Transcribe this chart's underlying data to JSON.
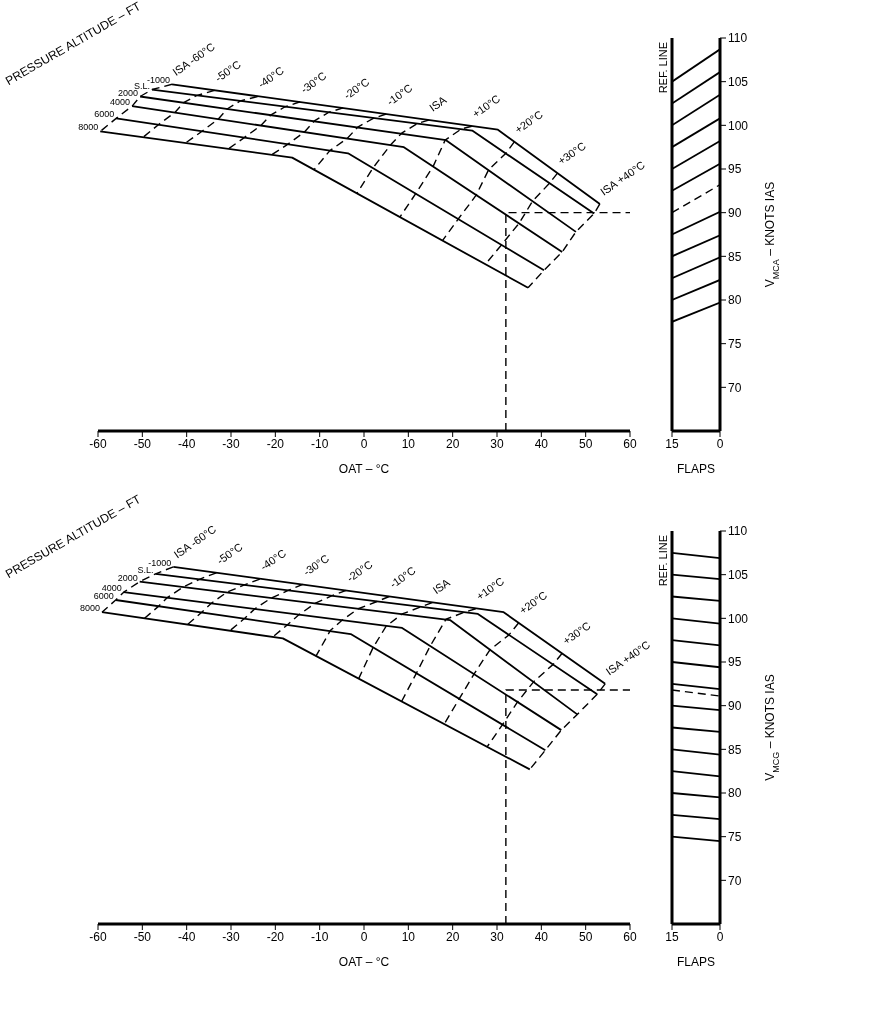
{
  "chart_data": [
    {
      "type": "line",
      "xlabel": "OAT – °C",
      "legend_title": "PRESSURE ALTITUDE – FT",
      "xlim": [
        -60,
        60
      ],
      "xticks": [
        -60,
        -50,
        -40,
        -30,
        -20,
        -10,
        0,
        10,
        20,
        30,
        40,
        50,
        60
      ],
      "ylim": [
        65,
        110
      ],
      "tick_labels": "x",
      "series": [
        {
          "name": "-1000",
          "color": "#000000",
          "line_style": "solid",
          "x": [
            -43.3,
            30.2,
            53.2
          ],
          "values": [
            104.7,
            99.5,
            91.0
          ]
        },
        {
          "name": "S.L.",
          "color": "#000000",
          "line_style": "solid",
          "x": [
            -47.8,
            24.4,
            51.9
          ],
          "values": [
            104.1,
            99.4,
            89.9
          ]
        },
        {
          "name": "2000",
          "color": "#000000",
          "line_style": "solid",
          "x": [
            -50.5,
            18.5,
            47.8
          ],
          "values": [
            103.3,
            98.3,
            87.8
          ]
        },
        {
          "name": "4000",
          "color": "#000000",
          "line_style": "solid",
          "x": [
            -52.3,
            9.0,
            44.7
          ],
          "values": [
            102.2,
            97.5,
            85.5
          ]
        },
        {
          "name": "6000",
          "color": "#000000",
          "line_style": "solid",
          "x": [
            -55.9,
            -3.6,
            40.6
          ],
          "values": [
            100.8,
            96.8,
            83.4
          ]
        },
        {
          "name": "8000",
          "color": "#000000",
          "line_style": "solid",
          "x": [
            -59.5,
            -16.2,
            37.0
          ],
          "values": [
            99.3,
            96.3,
            81.4
          ]
        },
        {
          "name": "ISA -60°C",
          "color": "#000000",
          "line_style": "dashed",
          "x": [
            -43.3,
            -47.8,
            -50.5,
            -52.3,
            -55.9,
            -59.5
          ],
          "values": [
            104.7,
            104.1,
            103.3,
            102.2,
            100.8,
            99.3
          ]
        },
        {
          "name": "-50°C",
          "color": "#000000",
          "line_style": "dashed",
          "x": [
            -33.7,
            -37.8,
            -40.7,
            -42.6,
            -46.3,
            -49.9
          ],
          "values": [
            104.0,
            103.4,
            102.6,
            101.5,
            100.1,
            98.6
          ]
        },
        {
          "name": "-40°C",
          "color": "#000000",
          "line_style": "dashed",
          "x": [
            -24.0,
            -27.9,
            -30.8,
            -32.9,
            -36.6,
            -40.2
          ],
          "values": [
            103.3,
            102.8,
            101.9,
            100.7,
            99.3,
            98.0
          ]
        },
        {
          "name": "-30°C",
          "color": "#000000",
          "line_style": "dashed",
          "x": [
            -14.4,
            -17.9,
            -21.0,
            -23.2,
            -27.0,
            -30.6
          ],
          "values": [
            102.7,
            102.1,
            101.2,
            100.0,
            98.6,
            97.3
          ]
        },
        {
          "name": "-20°C",
          "color": "#000000",
          "line_style": "dashed",
          "x": [
            -4.7,
            -7.9,
            -11.2,
            -13.5,
            -17.3,
            -20.9
          ],
          "values": [
            102.0,
            101.5,
            100.5,
            99.2,
            97.8,
            96.6
          ]
        },
        {
          "name": "-10°C",
          "color": "#000000",
          "line_style": "dashed",
          "x": [
            5.0,
            2.1,
            -1.4,
            -3.8,
            -7.7,
            -11.3
          ],
          "values": [
            101.3,
            100.8,
            99.8,
            98.5,
            97.1,
            94.9
          ]
        },
        {
          "name": "ISA",
          "color": "#000000",
          "line_style": "dashed",
          "x": [
            14.6,
            12.0,
            8.5,
            5.9,
            2.0,
            -1.6
          ],
          "values": [
            100.6,
            100.2,
            99.1,
            97.7,
            95.1,
            92.2
          ]
        },
        {
          "name": "+10°C",
          "color": "#000000",
          "line_style": "dashed",
          "x": [
            24.3,
            22.0,
            18.3,
            15.6,
            11.7,
            8.1
          ],
          "values": [
            99.9,
            99.6,
            98.3,
            95.3,
            92.2,
            89.5
          ]
        },
        {
          "name": "+20°C",
          "color": "#000000",
          "line_style": "dashed",
          "x": [
            33.9,
            32.0,
            28.1,
            25.3,
            21.3,
            17.7
          ],
          "values": [
            98.1,
            96.8,
            94.9,
            92.0,
            89.3,
            86.8
          ]
        },
        {
          "name": "+30°C",
          "color": "#000000",
          "line_style": "dashed",
          "x": [
            43.6,
            41.9,
            38.0,
            35.0,
            31.0,
            27.4
          ],
          "values": [
            94.5,
            93.4,
            91.3,
            88.8,
            86.3,
            84.1
          ]
        },
        {
          "name": "ISA +40°C",
          "color": "#000000",
          "line_style": "dashed",
          "x": [
            53.2,
            51.9,
            47.8,
            44.7,
            40.6,
            37.0
          ],
          "values": [
            91.0,
            89.9,
            87.8,
            85.5,
            83.4,
            81.4
          ]
        },
        {
          "color": "#000000",
          "line_style": "dashed",
          "x": [
            32,
            32,
            60
          ],
          "values": [
            65,
            90,
            90
          ]
        }
      ]
    },
    {
      "type": "line",
      "xlabel": "FLAPS",
      "ylabel": "V$_{MCA}$ – KNOTS IAS",
      "xlim": [
        15,
        0
      ],
      "xticks": [
        15,
        0
      ],
      "ylim": [
        65,
        110
      ],
      "yticks": [
        70,
        75,
        80,
        85,
        90,
        95,
        100,
        105,
        110
      ],
      "ref_lines": [
        {
          "axis": "x",
          "value": 15,
          "label": "REF. LINE"
        }
      ],
      "series": [
        {
          "color": "#000000",
          "line_style": "solid",
          "x": [
            15,
            0
          ],
          "values": [
            105.0,
            108.7
          ]
        },
        {
          "color": "#000000",
          "line_style": "solid",
          "x": [
            15,
            0
          ],
          "values": [
            102.5,
            106.1
          ]
        },
        {
          "color": "#000000",
          "line_style": "solid",
          "x": [
            15,
            0
          ],
          "values": [
            100.0,
            103.5
          ]
        },
        {
          "color": "#000000",
          "line_style": "solid",
          "x": [
            15,
            0
          ],
          "values": [
            97.5,
            100.8
          ]
        },
        {
          "color": "#000000",
          "line_style": "solid",
          "x": [
            15,
            0
          ],
          "values": [
            95.0,
            98.2
          ]
        },
        {
          "color": "#000000",
          "line_style": "solid",
          "x": [
            15,
            0
          ],
          "values": [
            92.5,
            95.6
          ]
        },
        {
          "color": "#000000",
          "line_style": "solid",
          "x": [
            15,
            0
          ],
          "values": [
            87.5,
            90.1
          ]
        },
        {
          "color": "#000000",
          "line_style": "solid",
          "x": [
            15,
            0
          ],
          "values": [
            85.0,
            87.4
          ]
        },
        {
          "color": "#000000",
          "line_style": "solid",
          "x": [
            15,
            0
          ],
          "values": [
            82.5,
            84.9
          ]
        },
        {
          "color": "#000000",
          "line_style": "solid",
          "x": [
            15,
            0
          ],
          "values": [
            80.0,
            82.3
          ]
        },
        {
          "color": "#000000",
          "line_style": "solid",
          "x": [
            15,
            0
          ],
          "values": [
            77.5,
            79.7
          ]
        },
        {
          "color": "#000000",
          "line_style": "dashed",
          "x": [
            15,
            0
          ],
          "values": [
            90.0,
            93.2
          ]
        }
      ]
    },
    {
      "type": "line",
      "xlabel": "OAT – °C",
      "legend_title": "PRESSURE ALTITUDE – FT",
      "xlim": [
        -60,
        60
      ],
      "xticks": [
        -60,
        -50,
        -40,
        -30,
        -20,
        -10,
        0,
        10,
        20,
        30,
        40,
        50,
        60
      ],
      "ylim": [
        65,
        110
      ],
      "tick_labels": "x",
      "series": [
        {
          "name": "-1000",
          "color": "#000000",
          "line_style": "solid",
          "x": [
            -43.0,
            31.5,
            54.4
          ],
          "values": [
            105.9,
            100.7,
            92.5
          ]
        },
        {
          "name": "S.L.",
          "color": "#000000",
          "line_style": "solid",
          "x": [
            -47.0,
            25.7,
            52.6
          ],
          "values": [
            105.1,
            100.5,
            91.3
          ]
        },
        {
          "name": "2000",
          "color": "#000000",
          "line_style": "solid",
          "x": [
            -50.6,
            19.4,
            48.1
          ],
          "values": [
            104.2,
            99.8,
            89.0
          ]
        },
        {
          "name": "4000",
          "color": "#000000",
          "line_style": "solid",
          "x": [
            -54.2,
            8.6,
            44.5
          ],
          "values": [
            103.0,
            98.9,
            87.2
          ]
        },
        {
          "name": "6000",
          "color": "#000000",
          "line_style": "solid",
          "x": [
            -56.0,
            -3.0,
            40.9
          ],
          "values": [
            102.1,
            98.2,
            84.9
          ]
        },
        {
          "name": "8000",
          "color": "#000000",
          "line_style": "solid",
          "x": [
            -59.1,
            -18.3,
            37.4
          ],
          "values": [
            100.7,
            97.7,
            82.7
          ]
        },
        {
          "name": "ISA -60°C",
          "color": "#000000",
          "line_style": "dashed",
          "x": [
            -43.0,
            -47.0,
            -50.6,
            -54.2,
            -56.0,
            -59.1
          ],
          "values": [
            105.9,
            105.1,
            104.2,
            103.0,
            102.1,
            100.7
          ]
        },
        {
          "name": "-50°C",
          "color": "#000000",
          "line_style": "dashed",
          "x": [
            -33.3,
            -37.0,
            -40.7,
            -44.3,
            -46.3,
            -49.5
          ],
          "values": [
            105.2,
            104.5,
            103.6,
            102.4,
            101.4,
            100.0
          ]
        },
        {
          "name": "-40°C",
          "color": "#000000",
          "line_style": "dashed",
          "x": [
            -23.5,
            -27.1,
            -30.9,
            -34.5,
            -36.6,
            -39.8
          ],
          "values": [
            104.5,
            103.8,
            103.0,
            101.7,
            100.7,
            99.3
          ]
        },
        {
          "name": "-30°C",
          "color": "#000000",
          "line_style": "dashed",
          "x": [
            -13.8,
            -17.1,
            -21.0,
            -24.6,
            -26.9,
            -30.2
          ],
          "values": [
            103.9,
            103.2,
            102.3,
            101.1,
            100.0,
            98.6
          ]
        },
        {
          "name": "-20°C",
          "color": "#000000",
          "line_style": "dashed",
          "x": [
            -4.0,
            -7.2,
            -11.1,
            -14.7,
            -17.2,
            -20.5
          ],
          "values": [
            103.2,
            102.6,
            101.7,
            100.4,
            99.3,
            97.9
          ]
        },
        {
          "name": "-10°C",
          "color": "#000000",
          "line_style": "dashed",
          "x": [
            5.7,
            2.8,
            -1.3,
            -4.9,
            -7.6,
            -10.8
          ],
          "values": [
            102.5,
            101.9,
            101.1,
            99.8,
            98.6,
            95.7
          ]
        },
        {
          "name": "ISA",
          "color": "#000000",
          "line_style": "dashed",
          "x": [
            15.4,
            12.8,
            8.6,
            5.0,
            2.1,
            -1.2
          ],
          "values": [
            101.8,
            101.3,
            100.5,
            99.1,
            96.7,
            93.1
          ]
        },
        {
          "name": "+10°C",
          "color": "#000000",
          "line_style": "dashed",
          "x": [
            25.2,
            22.7,
            18.5,
            14.9,
            11.8,
            8.5
          ],
          "values": [
            101.1,
            100.7,
            99.9,
            96.8,
            93.7,
            90.5
          ]
        },
        {
          "name": "+20°C",
          "color": "#000000",
          "line_style": "dashed",
          "x": [
            34.9,
            32.7,
            28.4,
            24.8,
            21.5,
            18.1
          ],
          "values": [
            99.5,
            98.1,
            96.4,
            93.6,
            90.8,
            87.9
          ]
        },
        {
          "name": "+30°C",
          "color": "#000000",
          "line_style": "dashed",
          "x": [
            44.7,
            42.6,
            38.2,
            34.6,
            31.2,
            27.8
          ],
          "values": [
            96.0,
            94.7,
            92.7,
            90.4,
            87.8,
            85.3
          ]
        },
        {
          "name": "ISA +40°C",
          "color": "#000000",
          "line_style": "dashed",
          "x": [
            54.4,
            52.6,
            48.1,
            44.5,
            40.9,
            37.4
          ],
          "values": [
            92.5,
            91.3,
            89.0,
            87.2,
            84.9,
            82.7
          ]
        },
        {
          "color": "#000000",
          "line_style": "dashed",
          "x": [
            32,
            32,
            60
          ],
          "values": [
            65,
            91.8,
            91.8
          ]
        }
      ]
    },
    {
      "type": "line",
      "xlabel": "FLAPS",
      "ylabel": "V$_{MCG}$ – KNOTS IAS",
      "xlim": [
        15,
        0
      ],
      "xticks": [
        15,
        0
      ],
      "ylim": [
        65,
        110
      ],
      "yticks": [
        70,
        75,
        80,
        85,
        90,
        95,
        100,
        105,
        110
      ],
      "ref_lines": [
        {
          "axis": "x",
          "value": 15,
          "label": "REF. LINE"
        }
      ],
      "series": [
        {
          "color": "#000000",
          "line_style": "solid",
          "x": [
            15,
            0
          ],
          "values": [
            107.5,
            106.9
          ]
        },
        {
          "color": "#000000",
          "line_style": "solid",
          "x": [
            15,
            0
          ],
          "values": [
            105.0,
            104.5
          ]
        },
        {
          "color": "#000000",
          "line_style": "solid",
          "x": [
            15,
            0
          ],
          "values": [
            102.5,
            102.0
          ]
        },
        {
          "color": "#000000",
          "line_style": "solid",
          "x": [
            15,
            0
          ],
          "values": [
            100.0,
            99.4
          ]
        },
        {
          "color": "#000000",
          "line_style": "solid",
          "x": [
            15,
            0
          ],
          "values": [
            97.5,
            96.9
          ]
        },
        {
          "color": "#000000",
          "line_style": "solid",
          "x": [
            15,
            0
          ],
          "values": [
            95.0,
            94.4
          ]
        },
        {
          "color": "#000000",
          "line_style": "solid",
          "x": [
            15,
            0
          ],
          "values": [
            92.5,
            91.9
          ]
        },
        {
          "color": "#000000",
          "line_style": "solid",
          "x": [
            15,
            0
          ],
          "values": [
            90.0,
            89.5
          ]
        },
        {
          "color": "#000000",
          "line_style": "solid",
          "x": [
            15,
            0
          ],
          "values": [
            87.5,
            87.0
          ]
        },
        {
          "color": "#000000",
          "line_style": "solid",
          "x": [
            15,
            0
          ],
          "values": [
            85.0,
            84.4
          ]
        },
        {
          "color": "#000000",
          "line_style": "solid",
          "x": [
            15,
            0
          ],
          "values": [
            82.5,
            81.9
          ]
        },
        {
          "color": "#000000",
          "line_style": "solid",
          "x": [
            15,
            0
          ],
          "values": [
            80.0,
            79.5
          ]
        },
        {
          "color": "#000000",
          "line_style": "solid",
          "x": [
            15,
            0
          ],
          "values": [
            77.5,
            77.0
          ]
        },
        {
          "color": "#000000",
          "line_style": "solid",
          "x": [
            15,
            0
          ],
          "values": [
            75.0,
            74.5
          ]
        },
        {
          "color": "#000000",
          "line_style": "dashed",
          "x": [
            15,
            0
          ],
          "values": [
            91.8,
            91.1
          ]
        }
      ]
    }
  ]
}
